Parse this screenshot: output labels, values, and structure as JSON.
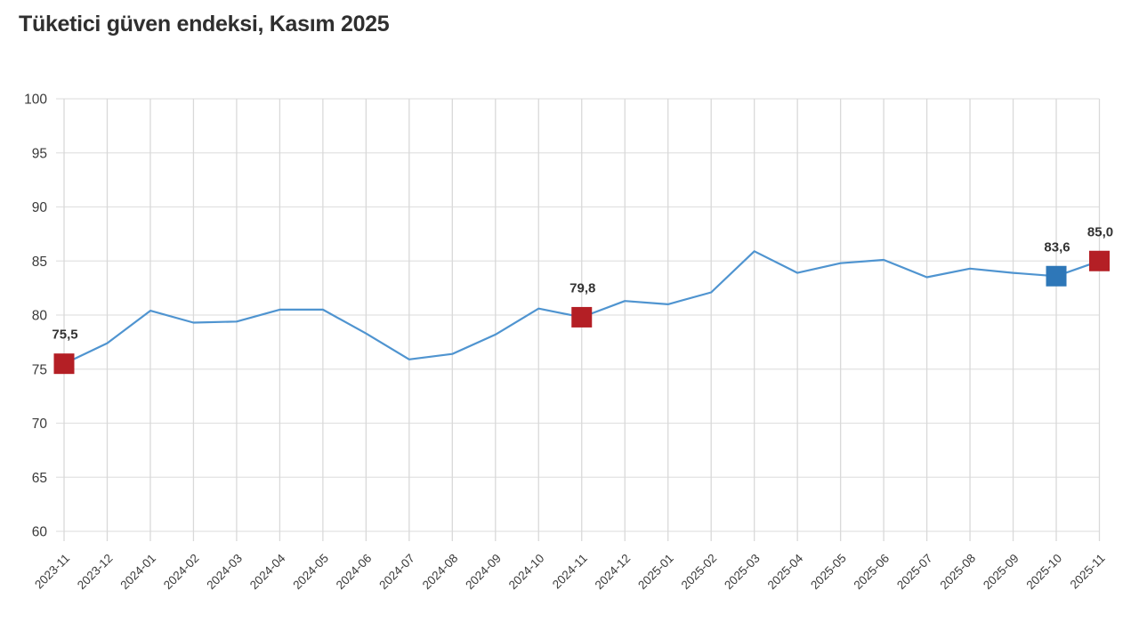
{
  "title": "Tüketici güven endeksi, Kasım 2025",
  "chart_data": {
    "type": "line",
    "title": "Tüketici güven endeksi, Kasım 2025",
    "xlabel": "",
    "ylabel": "",
    "grid": "both",
    "legend": "none",
    "ylim": [
      60,
      100
    ],
    "yticks": [
      60,
      65,
      70,
      75,
      80,
      85,
      90,
      95,
      100
    ],
    "categories": [
      "2023-11",
      "2023-12",
      "2024-01",
      "2024-02",
      "2024-03",
      "2024-04",
      "2024-05",
      "2024-06",
      "2024-07",
      "2024-08",
      "2024-09",
      "2024-10",
      "2024-11",
      "2024-12",
      "2025-01",
      "2025-02",
      "2025-03",
      "2025-04",
      "2025-05",
      "2025-06",
      "2025-07",
      "2025-08",
      "2025-09",
      "2025-10",
      "2025-11"
    ],
    "values": [
      75.5,
      77.4,
      80.4,
      79.3,
      79.4,
      80.5,
      80.5,
      78.3,
      75.9,
      76.4,
      78.2,
      80.6,
      79.8,
      81.3,
      81.0,
      82.1,
      85.9,
      83.9,
      84.8,
      85.1,
      83.5,
      84.3,
      83.9,
      83.6,
      85.0
    ],
    "marked_points": [
      {
        "category": "2023-11",
        "value": 75.5,
        "label": "75,5",
        "marker_color": "#b41f25"
      },
      {
        "category": "2024-11",
        "value": 79.8,
        "label": "79,8",
        "marker_color": "#b41f25"
      },
      {
        "category": "2025-10",
        "value": 83.6,
        "label": "83,6",
        "marker_color": "#2e77b8"
      },
      {
        "category": "2025-11",
        "value": 85.0,
        "label": "85,0",
        "marker_color": "#b41f25"
      }
    ],
    "colors": {
      "line": "#4f94d0",
      "marker_red": "#b41f25",
      "marker_blue": "#2e77b8",
      "grid_vertical": "#d9d9d9",
      "grid_horizontal": "#e2e2e2",
      "axis_text": "#3a3a3a",
      "data_label_text": "#333333",
      "title_text": "#2f2f2f"
    }
  }
}
